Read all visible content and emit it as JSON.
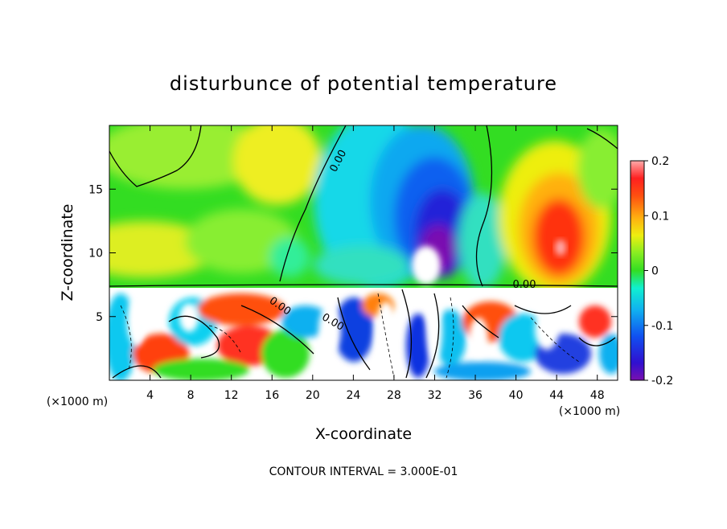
{
  "chart_data": {
    "type": "heatmap",
    "title": "disturbunce of potential temperature",
    "xlabel": "X-coordinate",
    "ylabel": "Z-coordinate",
    "x_unit": "(×1000 m)",
    "xlim": [
      0,
      50
    ],
    "ylim": [
      0,
      20
    ],
    "x_ticks": [
      "4",
      "8",
      "12",
      "16",
      "20",
      "24",
      "28",
      "32",
      "36",
      "40",
      "44",
      "48"
    ],
    "y_ticks": [
      "5",
      "10",
      "15"
    ],
    "colorbar": {
      "range": [
        -0.2,
        0.2
      ],
      "ticks": [
        "0.2",
        "0.1",
        "0",
        "-0.1",
        "-0.2"
      ]
    },
    "contour_labels": [
      "0.00",
      "0.00",
      "0.00",
      "0.00"
    ],
    "footer": "CONTOUR INTERVAL = 3.000E-01",
    "colors": {
      "neutral": "#33dd22",
      "positive": "#ff2010",
      "negative": "#1020e0",
      "extreme_high": "#ffaaaa",
      "extreme_low": "#7a10b0"
    }
  }
}
